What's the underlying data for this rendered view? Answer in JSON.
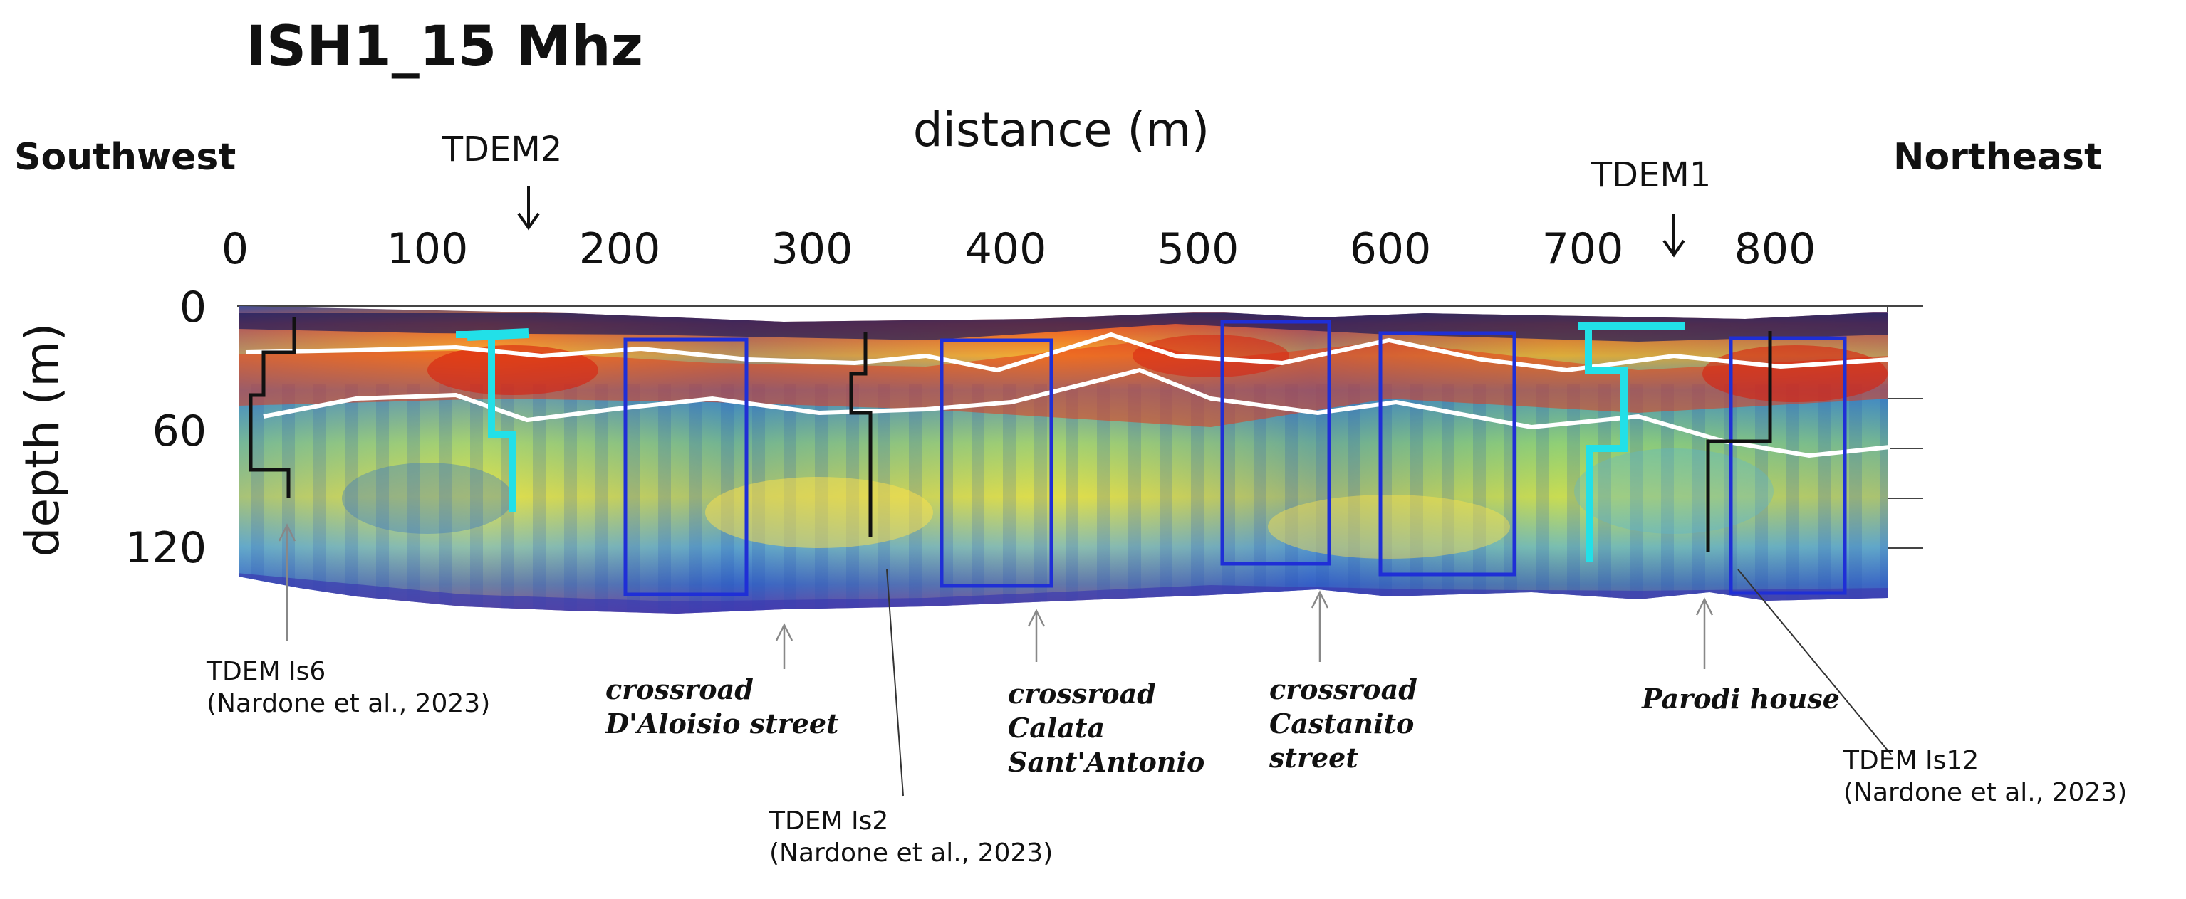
{
  "title": "ISH1_15 Mhz",
  "directions": {
    "left": "Southwest",
    "right": "Northeast"
  },
  "x_axis": {
    "title": "distance (m)",
    "ticks": [
      "0",
      "100",
      "200",
      "300",
      "400",
      "500",
      "600",
      "700",
      "800"
    ]
  },
  "y_axis": {
    "title": "depth (m)",
    "ticks": [
      "0",
      "60",
      "120"
    ]
  },
  "tdem_top": [
    {
      "label": "TDEM2"
    },
    {
      "label": "TDEM1"
    }
  ],
  "annotations": {
    "is6": {
      "line1": "TDEM Is6",
      "line2": "(Nardone et al., 2023)"
    },
    "is2": {
      "line1": "TDEM Is2",
      "line2": "(Nardone et al., 2023)"
    },
    "is12": {
      "line1": "TDEM Is12",
      "line2": "(Nardone et al., 2023)"
    },
    "daloisio": {
      "line1": "crossroad",
      "line2": "D'Aloisio street"
    },
    "calata": {
      "line1": "crossroad",
      "line2": "Calata",
      "line3": "Sant'Antonio"
    },
    "castanito": {
      "line1": "crossroad",
      "line2": "Castanito",
      "line3": "street"
    },
    "parodi": {
      "line1": "Parodi house"
    }
  },
  "colors": {
    "blue_box": "#1f2fd6",
    "cyan_profile": "#22e0e8",
    "black_profile": "#111111",
    "white_horizon": "#ffffff",
    "section_bg": "#cfe24a"
  }
}
